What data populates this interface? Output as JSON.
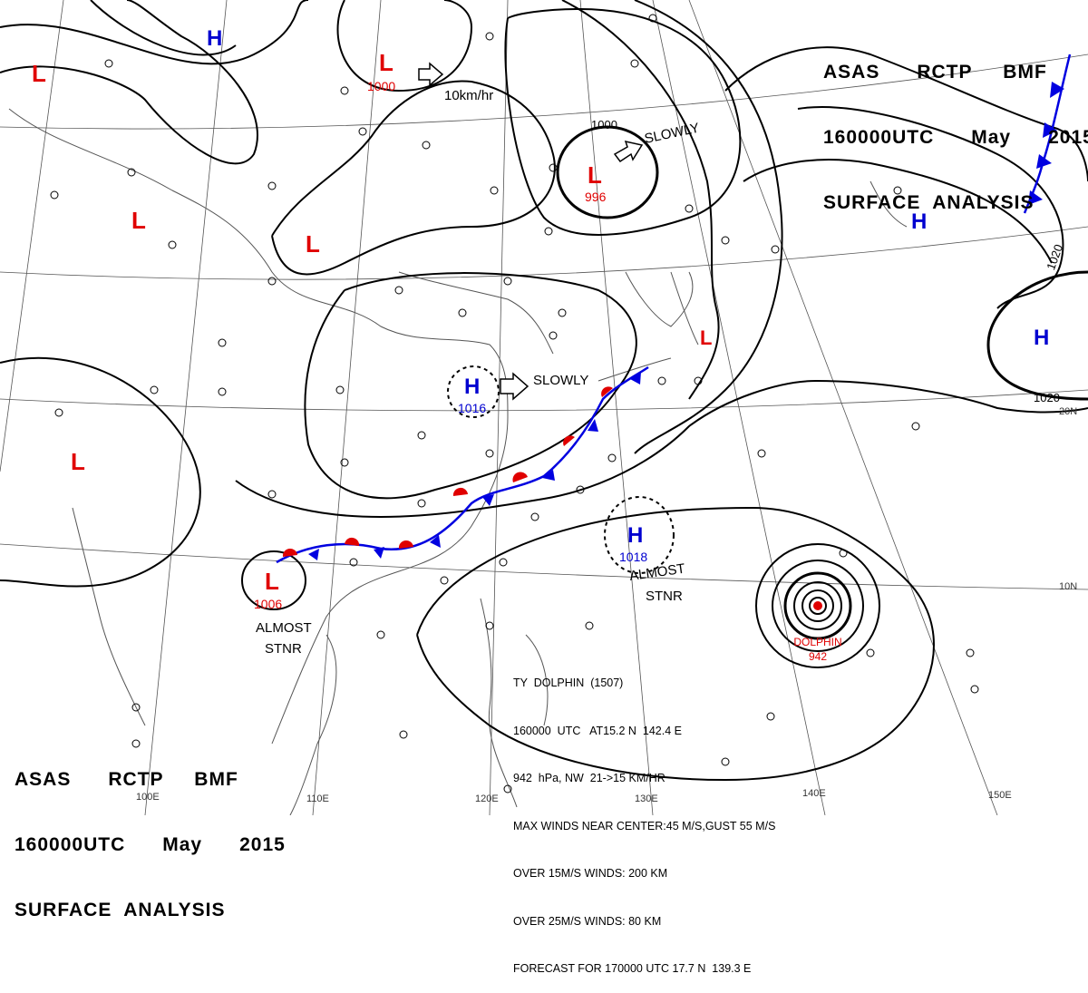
{
  "header": {
    "line1": "ASAS      RCTP     BMF",
    "line2": "160000UTC      May      2015",
    "line3": "SURFACE  ANALYSIS"
  },
  "typhoon": {
    "name_line": "TY  DOLPHIN  (1507)",
    "position_line": "160000  UTC   AT15.2 N  142.4 E",
    "pressure_line": "942  hPa, NW  21->15 KM/HR",
    "max_winds_line": "MAX WINDS NEAR CENTER:45 M/S,GUST 55 M/S",
    "over15_line": "OVER 15M/S WINDS: 200 KM",
    "over25_line": "OVER 25M/S WINDS: 80 KM",
    "forecast_line": "FORECAST FOR 170000 UTC 17.7 N  139.3 E",
    "center_label": "DOLPHIN",
    "center_pressure": "942"
  },
  "longitude_labels": [
    "110E",
    "120E",
    "130E",
    "140E",
    "150E",
    "100E"
  ],
  "latitude_labels": [
    "10N",
    "20N"
  ],
  "pressure_centers": [
    {
      "type": "L",
      "value": "1000"
    },
    {
      "type": "L",
      "value": "996"
    },
    {
      "type": "L",
      "value": "1006"
    },
    {
      "type": "H",
      "value": "1016"
    },
    {
      "type": "H",
      "value": "1018"
    },
    {
      "type": "H",
      "value": ""
    },
    {
      "type": "L",
      "value": ""
    }
  ],
  "isobar_labels": [
    "1000",
    "1020",
    "1020"
  ],
  "motion_labels": [
    "10km/hr",
    "SLOWLY",
    "SLOWLY",
    "ALMOST",
    "STNR",
    "ALMOST",
    "STNR"
  ],
  "colors": {
    "low": "#e00000",
    "high": "#0000d0",
    "isobar": "#000000",
    "warm_front": "#e00000",
    "cold_front": "#0000e0",
    "coast": "#555555"
  }
}
